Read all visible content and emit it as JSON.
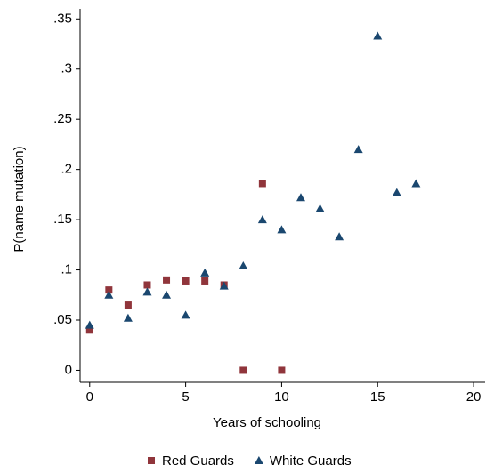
{
  "chart_data": {
    "type": "scatter",
    "xlabel": "Years of schooling",
    "ylabel": "P(name mutation)",
    "xlim": [
      -0.5,
      20.6
    ],
    "ylim": [
      -0.012,
      0.36
    ],
    "xticks": [
      0,
      5,
      10,
      15,
      20
    ],
    "yticks": [
      0,
      {
        "value": 0.05,
        "label": ".05"
      },
      {
        "value": 0.1,
        "label": ".1"
      },
      {
        "value": 0.15,
        "label": ".15"
      },
      {
        "value": 0.2,
        "label": ".2"
      },
      {
        "value": 0.25,
        "label": ".25"
      },
      {
        "value": 0.3,
        "label": ".3"
      },
      {
        "value": 0.35,
        "label": ".35"
      }
    ],
    "legend": "bottom",
    "series": [
      {
        "name": "Red Guards",
        "color": "#90353b",
        "marker": "square",
        "x": [
          0,
          1,
          2,
          3,
          4,
          5,
          6,
          7,
          8,
          9,
          10
        ],
        "values": [
          0.04,
          0.08,
          0.065,
          0.085,
          0.09,
          0.089,
          0.089,
          0.085,
          0,
          0.186,
          0
        ]
      },
      {
        "name": "White Guards",
        "color": "#1a476f",
        "marker": "triangle",
        "x": [
          0,
          1,
          2,
          3,
          4,
          5,
          6,
          7,
          8,
          9,
          10,
          11,
          12,
          13,
          14,
          15,
          16,
          17
        ],
        "values": [
          0.045,
          0.075,
          0.052,
          0.078,
          0.075,
          0.055,
          0.097,
          0.084,
          0.104,
          0.15,
          0.14,
          0.172,
          0.161,
          0.133,
          0.22,
          0.333,
          0.177,
          0.186
        ]
      }
    ]
  }
}
